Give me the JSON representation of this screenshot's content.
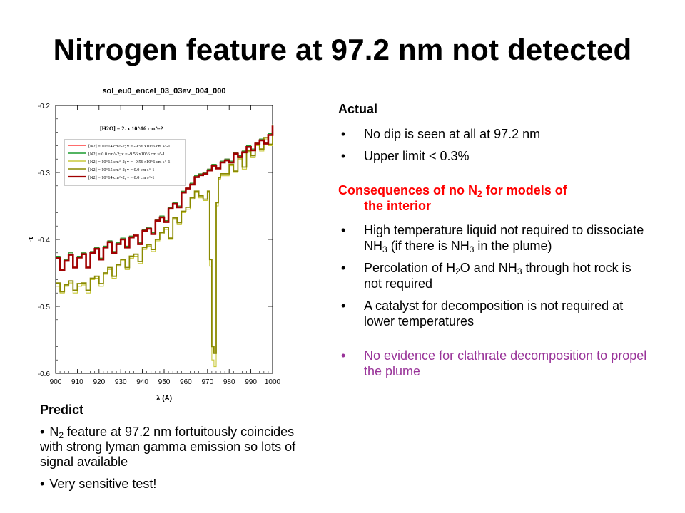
{
  "title": "Nitrogen feature at 97.2 nm not detected",
  "colors": {
    "red": "#ff0000",
    "purple": "#993399"
  },
  "chart_data": {
    "type": "line",
    "title": "sol_eu0_encel_03_03ev_004_000",
    "xlabel": "λ (A)",
    "ylabel": "-τ",
    "xlim": [
      900,
      1000
    ],
    "ylim": [
      -0.6,
      -0.2
    ],
    "xticks": [
      900,
      910,
      920,
      930,
      940,
      950,
      960,
      970,
      980,
      990,
      1000
    ],
    "yticks": [
      -0.2,
      -0.3,
      -0.4,
      -0.5,
      -0.6
    ],
    "annotation": "[H2O] = 2. x 10^16 cm^-2",
    "legend_position": "top-left",
    "series": [
      {
        "name": "[N2] = 10^14 cm^-2; v = -9.56 x10^6 cm s^-1",
        "color": "#ff3b3b",
        "x": [
          900,
          902,
          904,
          906,
          908,
          910,
          912,
          914,
          916,
          918,
          920,
          922,
          924,
          926,
          928,
          930,
          932,
          934,
          936,
          938,
          940,
          942,
          944,
          946,
          948,
          950,
          952,
          954,
          956,
          958,
          960,
          962,
          964,
          966,
          968,
          970,
          972,
          974,
          976,
          978,
          980,
          982,
          984,
          986,
          988,
          990,
          992,
          994,
          996,
          998,
          1000
        ],
        "y": [
          -0.425,
          -0.445,
          -0.43,
          -0.42,
          -0.44,
          -0.425,
          -0.42,
          -0.44,
          -0.418,
          -0.412,
          -0.428,
          -0.41,
          -0.402,
          -0.418,
          -0.405,
          -0.398,
          -0.41,
          -0.395,
          -0.392,
          -0.405,
          -0.385,
          -0.382,
          -0.39,
          -0.37,
          -0.365,
          -0.372,
          -0.352,
          -0.345,
          -0.35,
          -0.328,
          -0.322,
          -0.316,
          -0.305,
          -0.302,
          -0.3,
          -0.295,
          -0.288,
          -0.292,
          -0.283,
          -0.28,
          -0.283,
          -0.27,
          -0.275,
          -0.268,
          -0.26,
          -0.265,
          -0.255,
          -0.25,
          -0.255,
          -0.242,
          -0.228
        ]
      },
      {
        "name": "[N2] = 0.0 cm^-2; v = -9.56 x10^6 cm s^-1",
        "color": "#1a9c2e",
        "x": [
          900,
          902,
          904,
          906,
          908,
          910,
          912,
          914,
          916,
          918,
          920,
          922,
          924,
          926,
          928,
          930,
          932,
          934,
          936,
          938,
          940,
          942,
          944,
          946,
          948,
          950,
          952,
          954,
          956,
          958,
          960,
          962,
          964,
          966,
          968,
          970,
          972,
          974,
          976,
          978,
          980,
          982,
          984,
          986,
          988,
          990,
          992,
          994,
          996,
          998,
          1000
        ],
        "y": [
          -0.425,
          -0.445,
          -0.43,
          -0.42,
          -0.44,
          -0.425,
          -0.42,
          -0.44,
          -0.418,
          -0.412,
          -0.428,
          -0.41,
          -0.402,
          -0.418,
          -0.405,
          -0.398,
          -0.41,
          -0.395,
          -0.392,
          -0.405,
          -0.385,
          -0.382,
          -0.39,
          -0.37,
          -0.365,
          -0.372,
          -0.352,
          -0.345,
          -0.35,
          -0.328,
          -0.322,
          -0.316,
          -0.305,
          -0.302,
          -0.3,
          -0.295,
          -0.288,
          -0.292,
          -0.283,
          -0.28,
          -0.283,
          -0.27,
          -0.275,
          -0.268,
          -0.26,
          -0.265,
          -0.255,
          -0.25,
          -0.255,
          -0.242,
          -0.228
        ]
      },
      {
        "name": "[N2] = 10^15 cm^-2; v = -9.56 x10^6 cm s^-1",
        "color": "#c8c83a",
        "x": [
          900,
          902,
          904,
          906,
          908,
          910,
          912,
          914,
          916,
          918,
          920,
          922,
          924,
          926,
          928,
          930,
          932,
          934,
          936,
          938,
          940,
          942,
          944,
          946,
          948,
          950,
          952,
          954,
          956,
          958,
          960,
          962,
          964,
          966,
          968,
          970,
          971,
          972,
          973,
          974,
          975,
          976,
          978,
          980,
          982,
          984,
          986,
          988,
          990,
          992,
          994,
          996,
          998,
          1000
        ],
        "y": [
          -0.47,
          -0.48,
          -0.47,
          -0.465,
          -0.48,
          -0.47,
          -0.468,
          -0.48,
          -0.46,
          -0.458,
          -0.47,
          -0.452,
          -0.445,
          -0.458,
          -0.44,
          -0.432,
          -0.445,
          -0.428,
          -0.425,
          -0.436,
          -0.415,
          -0.41,
          -0.418,
          -0.402,
          -0.392,
          -0.385,
          -0.4,
          -0.37,
          -0.378,
          -0.36,
          -0.355,
          -0.34,
          -0.33,
          -0.338,
          -0.342,
          -0.33,
          -0.44,
          -0.58,
          -0.59,
          -0.35,
          -0.31,
          -0.305,
          -0.305,
          -0.29,
          -0.3,
          -0.28,
          -0.295,
          -0.27,
          -0.278,
          -0.26,
          -0.268,
          -0.25,
          -0.26,
          -0.235
        ]
      },
      {
        "name": "[N2] = 10^15 cm^-2; v = 0.0 cm s^-1",
        "color": "#8a8a00",
        "x": [
          900,
          902,
          904,
          906,
          908,
          910,
          912,
          914,
          916,
          918,
          920,
          922,
          924,
          926,
          928,
          930,
          932,
          934,
          936,
          938,
          940,
          942,
          944,
          946,
          948,
          950,
          952,
          954,
          956,
          958,
          960,
          962,
          964,
          966,
          968,
          970,
          971,
          972,
          973,
          974,
          975,
          976,
          978,
          980,
          982,
          984,
          986,
          988,
          990,
          992,
          994,
          996,
          998,
          1000
        ],
        "y": [
          -0.465,
          -0.478,
          -0.468,
          -0.462,
          -0.476,
          -0.466,
          -0.465,
          -0.476,
          -0.458,
          -0.455,
          -0.466,
          -0.45,
          -0.442,
          -0.455,
          -0.438,
          -0.43,
          -0.442,
          -0.425,
          -0.422,
          -0.433,
          -0.412,
          -0.408,
          -0.415,
          -0.4,
          -0.39,
          -0.382,
          -0.398,
          -0.368,
          -0.375,
          -0.358,
          -0.352,
          -0.338,
          -0.328,
          -0.335,
          -0.34,
          -0.328,
          -0.43,
          -0.56,
          -0.57,
          -0.345,
          -0.308,
          -0.302,
          -0.302,
          -0.288,
          -0.298,
          -0.278,
          -0.292,
          -0.268,
          -0.275,
          -0.258,
          -0.265,
          -0.248,
          -0.258,
          -0.232
        ]
      },
      {
        "name": "[N2] = 10^14 cm^-2; v = 0.0 cm s^-1",
        "color": "#a00000",
        "x": [
          900,
          902,
          904,
          906,
          908,
          910,
          912,
          914,
          916,
          918,
          920,
          922,
          924,
          926,
          928,
          930,
          932,
          934,
          936,
          938,
          940,
          942,
          944,
          946,
          948,
          950,
          952,
          954,
          956,
          958,
          960,
          962,
          964,
          966,
          968,
          970,
          972,
          974,
          976,
          978,
          980,
          982,
          984,
          986,
          988,
          990,
          992,
          994,
          996,
          998,
          1000
        ],
        "y": [
          -0.428,
          -0.446,
          -0.432,
          -0.423,
          -0.442,
          -0.427,
          -0.422,
          -0.442,
          -0.42,
          -0.414,
          -0.43,
          -0.412,
          -0.404,
          -0.42,
          -0.407,
          -0.4,
          -0.412,
          -0.397,
          -0.394,
          -0.407,
          -0.387,
          -0.384,
          -0.392,
          -0.372,
          -0.367,
          -0.374,
          -0.354,
          -0.347,
          -0.352,
          -0.33,
          -0.324,
          -0.318,
          -0.307,
          -0.304,
          -0.302,
          -0.297,
          -0.29,
          -0.294,
          -0.285,
          -0.282,
          -0.285,
          -0.272,
          -0.277,
          -0.27,
          -0.262,
          -0.267,
          -0.257,
          -0.252,
          -0.257,
          -0.244,
          -0.23
        ]
      }
    ]
  },
  "right": {
    "actual_head": "Actual",
    "actual_items": [
      "No dip is seen at all at 97.2 nm",
      "Upper limit < 0.3%"
    ],
    "cons_head_a": "Consequences of no N",
    "cons_head_sub": "2",
    "cons_head_b": " for models of",
    "cons_head_c": "the interior",
    "item1": {
      "a": "High temperature liquid not required to dissociate NH",
      "s1": "3",
      "b": " (if there is NH",
      "s2": "3",
      "c": " in the plume)"
    },
    "item2": {
      "a": "Percolation of H",
      "s1": "2",
      "b": "O and NH",
      "s2": "3",
      "c": " through hot rock is not required"
    },
    "item3": "A catalyst for decomposition is not required at lower temperatures",
    "item4": "No evidence for clathrate decomposition to propel the plume",
    "bullet": "•"
  },
  "left": {
    "head": "Predict",
    "item1": {
      "a": "N",
      "s": "2",
      "b": " feature at 97.2 nm fortuitously coincides with strong lyman gamma emission so lots of signal available"
    },
    "item2": "Very sensitive test!",
    "bullet": "•"
  }
}
